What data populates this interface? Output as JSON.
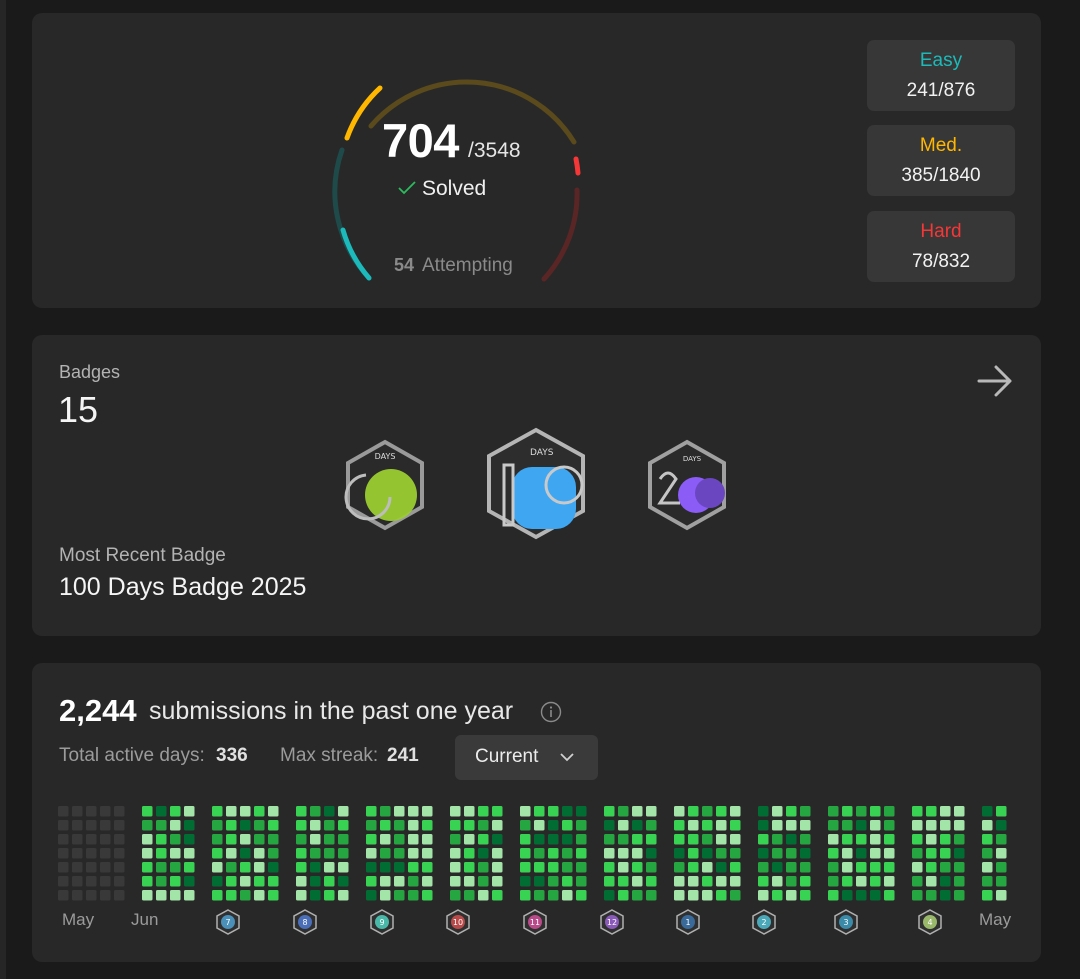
{
  "progress": {
    "solved": "704",
    "total": "/3548",
    "solved_label": "Solved",
    "attempting_count": "54",
    "attempting_label": "Attempting",
    "difficulties": [
      {
        "name": "Easy",
        "value": "241/876",
        "color": "#1cbaba"
      },
      {
        "name": "Med.",
        "value": "385/1840",
        "color": "#ffb700"
      },
      {
        "name": "Hard",
        "value": "78/832",
        "color": "#f63737"
      }
    ]
  },
  "badges": {
    "label": "Badges",
    "count": "15",
    "recent_label": "Most Recent Badge",
    "recent_name": "100 Days Badge 2025",
    "items": [
      {
        "name": "50-days-badge",
        "caption": "DAYS",
        "color": "#9acd32"
      },
      {
        "name": "100-days-badge",
        "caption": "DAYS",
        "color": "#3fa6f2"
      },
      {
        "name": "200-days-badge",
        "caption": "DAYS",
        "color": "#8b5cf6"
      }
    ]
  },
  "calendar": {
    "count": "2,244",
    "text": "submissions in the past one year",
    "active_label": "Total active days:",
    "active_value": "336",
    "streak_label": "Max streak:",
    "streak_value": "241",
    "select_value": "Current",
    "months": [
      "May",
      "Jun",
      "May"
    ],
    "monthly_badges": [
      "7",
      "8",
      "9",
      "10",
      "11",
      "12",
      "1",
      "2",
      "3",
      "4"
    ],
    "colors": {
      "empty": "#393939",
      "l1": "#0e4429",
      "l2": "#016d32",
      "l3": "#26a641",
      "l4": "#39d353",
      "l5": "#a3e5a8"
    }
  }
}
